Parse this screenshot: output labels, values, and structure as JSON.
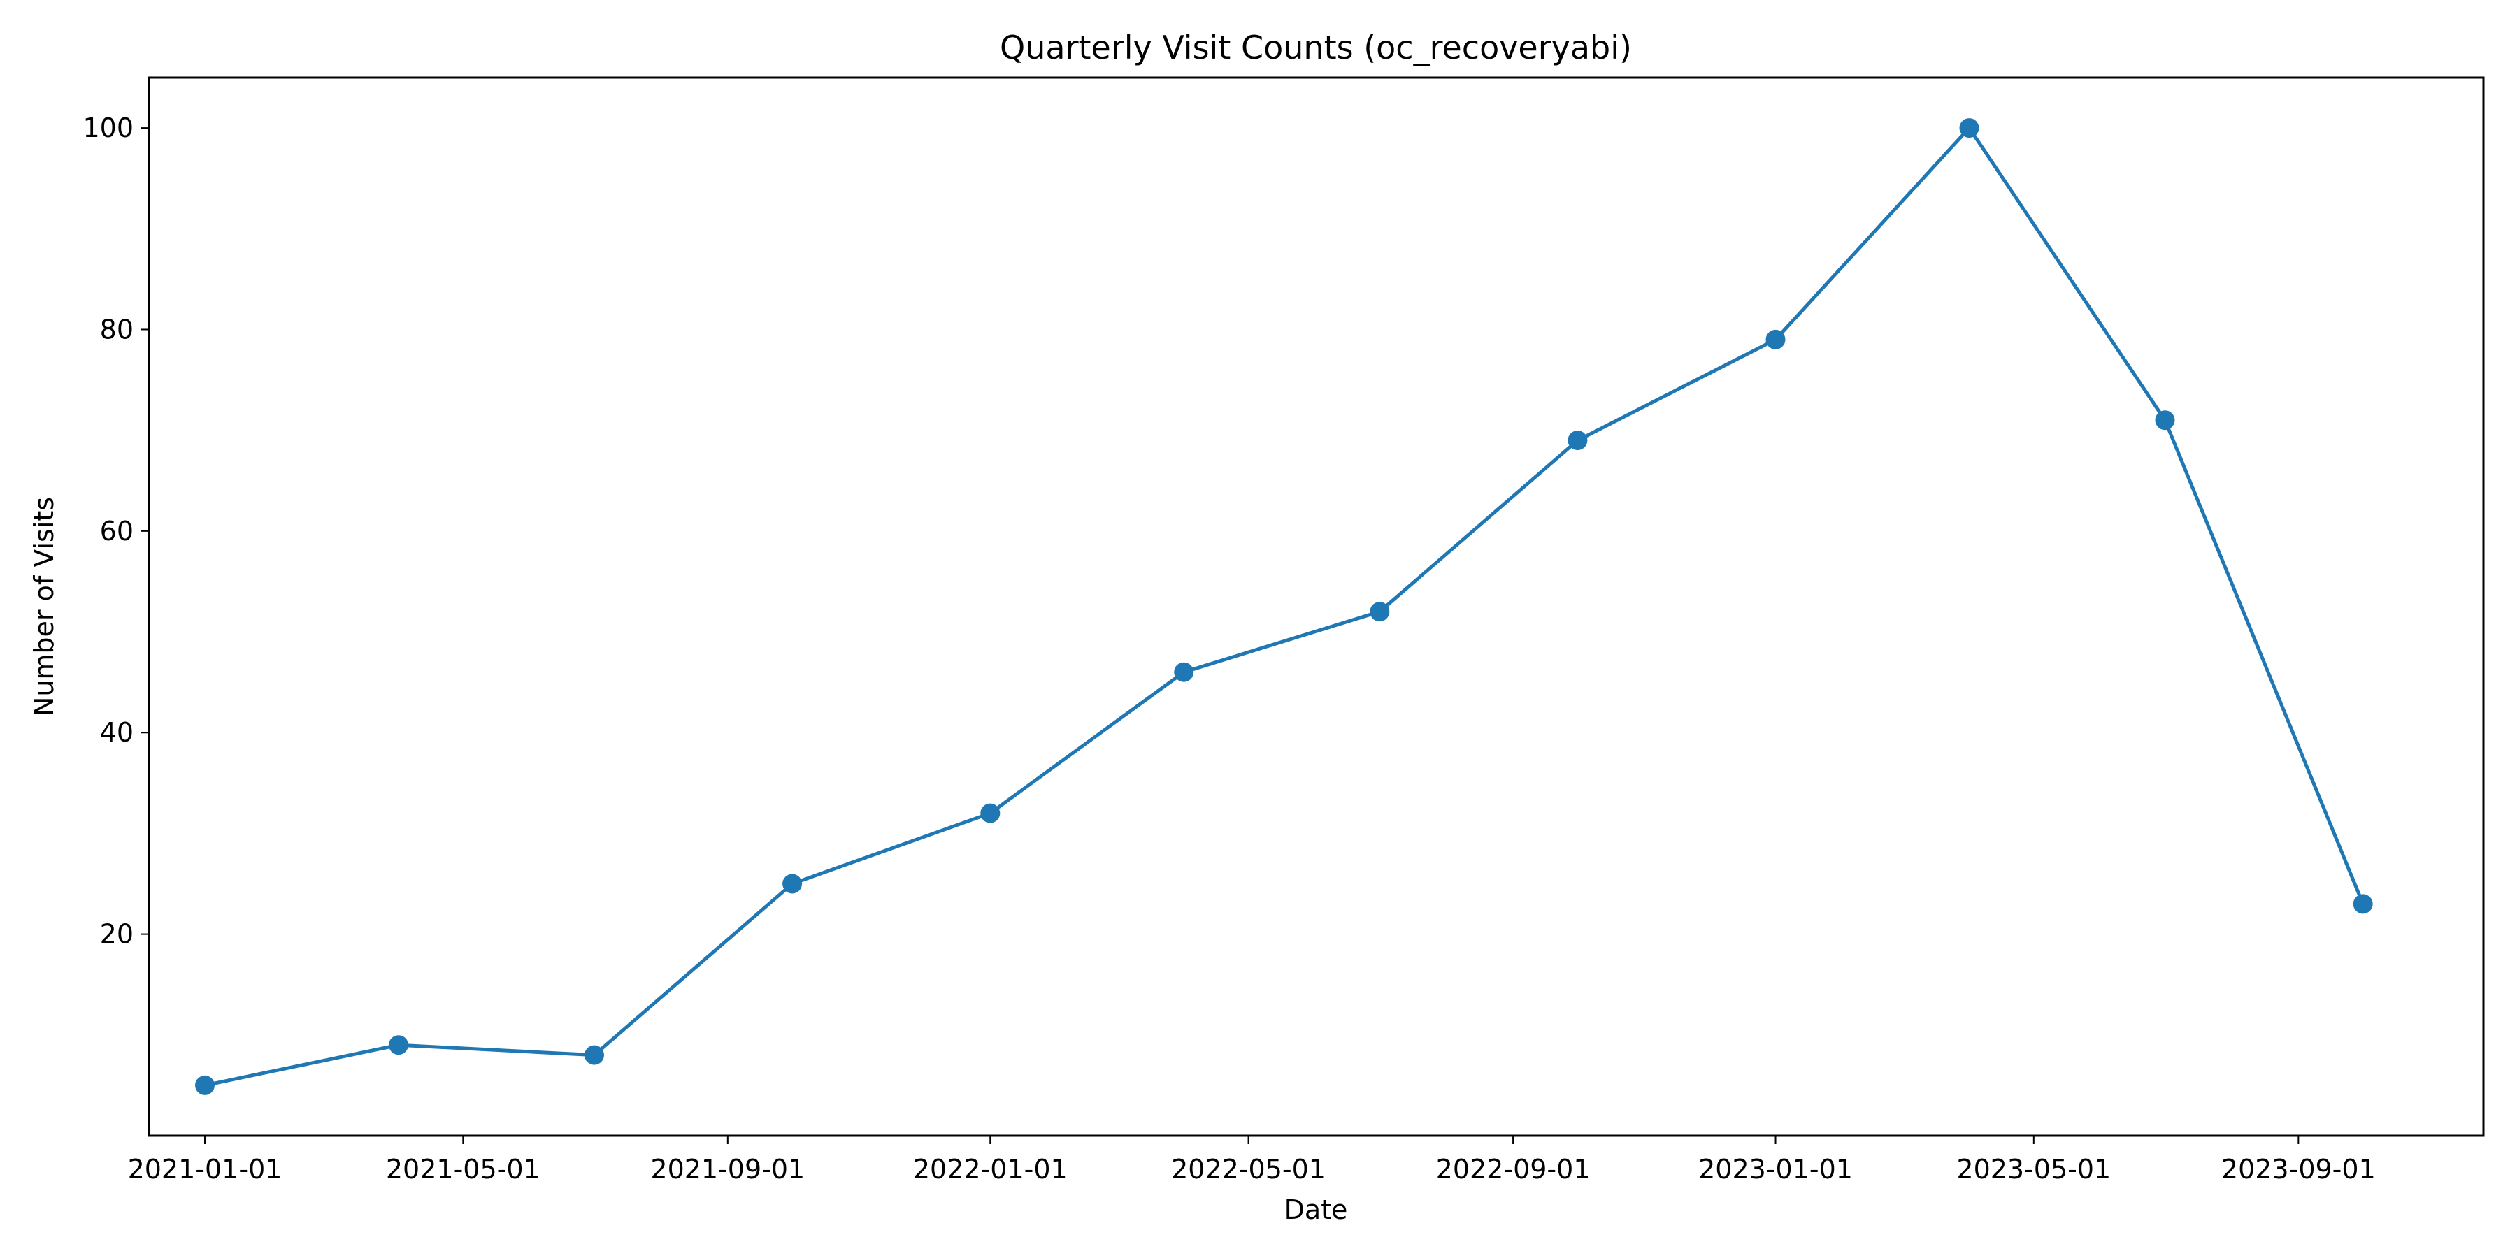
{
  "chart_data": {
    "type": "line",
    "title": "Quarterly Visit Counts (oc_recoveryabi)",
    "xlabel": "Date",
    "ylabel": "Number of Visits",
    "x_ticks": [
      "2021-01-01",
      "2021-05-01",
      "2021-09-01",
      "2022-01-01",
      "2022-05-01",
      "2022-09-01",
      "2023-01-01",
      "2023-05-01",
      "2023-09-01"
    ],
    "y_ticks": [
      20,
      40,
      60,
      80,
      100
    ],
    "xlim": [
      "2020-12-06",
      "2023-11-26"
    ],
    "ylim": [
      0,
      105
    ],
    "grid": false,
    "legend": "none",
    "series": [
      {
        "color": "#1f77b4",
        "marker": "circle",
        "x": [
          "2021-01-01",
          "2021-04-01",
          "2021-07-01",
          "2021-10-01",
          "2022-01-01",
          "2022-04-01",
          "2022-07-01",
          "2022-10-01",
          "2023-01-01",
          "2023-04-01",
          "2023-07-01",
          "2023-10-01"
        ],
        "values": [
          5,
          9,
          8,
          25,
          32,
          46,
          52,
          69,
          79,
          100,
          71,
          23
        ]
      }
    ]
  }
}
